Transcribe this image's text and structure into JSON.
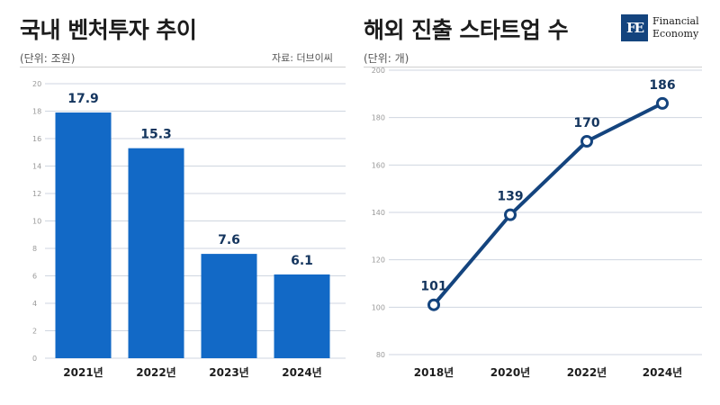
{
  "left": {
    "title": "국내 벤처투자 추이",
    "unit": "(단위: 조원)",
    "source": "자료: 더브이씨"
  },
  "right": {
    "title": "해외 진출 스타트업 수",
    "unit": "(단위: 개)"
  },
  "logo": {
    "mark": "FE",
    "line1": "Financial",
    "line2": "Economy"
  },
  "colors": {
    "bar": "#1269c6",
    "line": "#14447e",
    "label": "#14355e",
    "grid": "#cfd6e0"
  },
  "chart_data": [
    {
      "type": "bar",
      "title": "국내 벤처투자 추이",
      "ylabel": "(단위: 조원)",
      "categories": [
        "2021년",
        "2022년",
        "2023년",
        "2024년"
      ],
      "values": [
        17.9,
        15.3,
        7.6,
        6.1
      ],
      "value_labels": [
        "17.9",
        "15.3",
        "7.6",
        "6.1"
      ],
      "ylim": [
        0,
        20
      ],
      "yticks": [
        "0",
        "2",
        "4",
        "6",
        "8",
        "10",
        "12",
        "14",
        "16",
        "18",
        "20"
      ],
      "grid": true
    },
    {
      "type": "line",
      "title": "해외 진출 스타트업 수",
      "ylabel": "(단위: 개)",
      "categories": [
        "2018년",
        "2020년",
        "2022년",
        "2024년"
      ],
      "values": [
        101,
        139,
        170,
        186
      ],
      "value_labels": [
        "101",
        "139",
        "170",
        "186"
      ],
      "ylim": [
        80,
        200
      ],
      "yticks": [
        "80",
        "100",
        "120",
        "140",
        "160",
        "180",
        "200"
      ],
      "grid": true
    }
  ]
}
